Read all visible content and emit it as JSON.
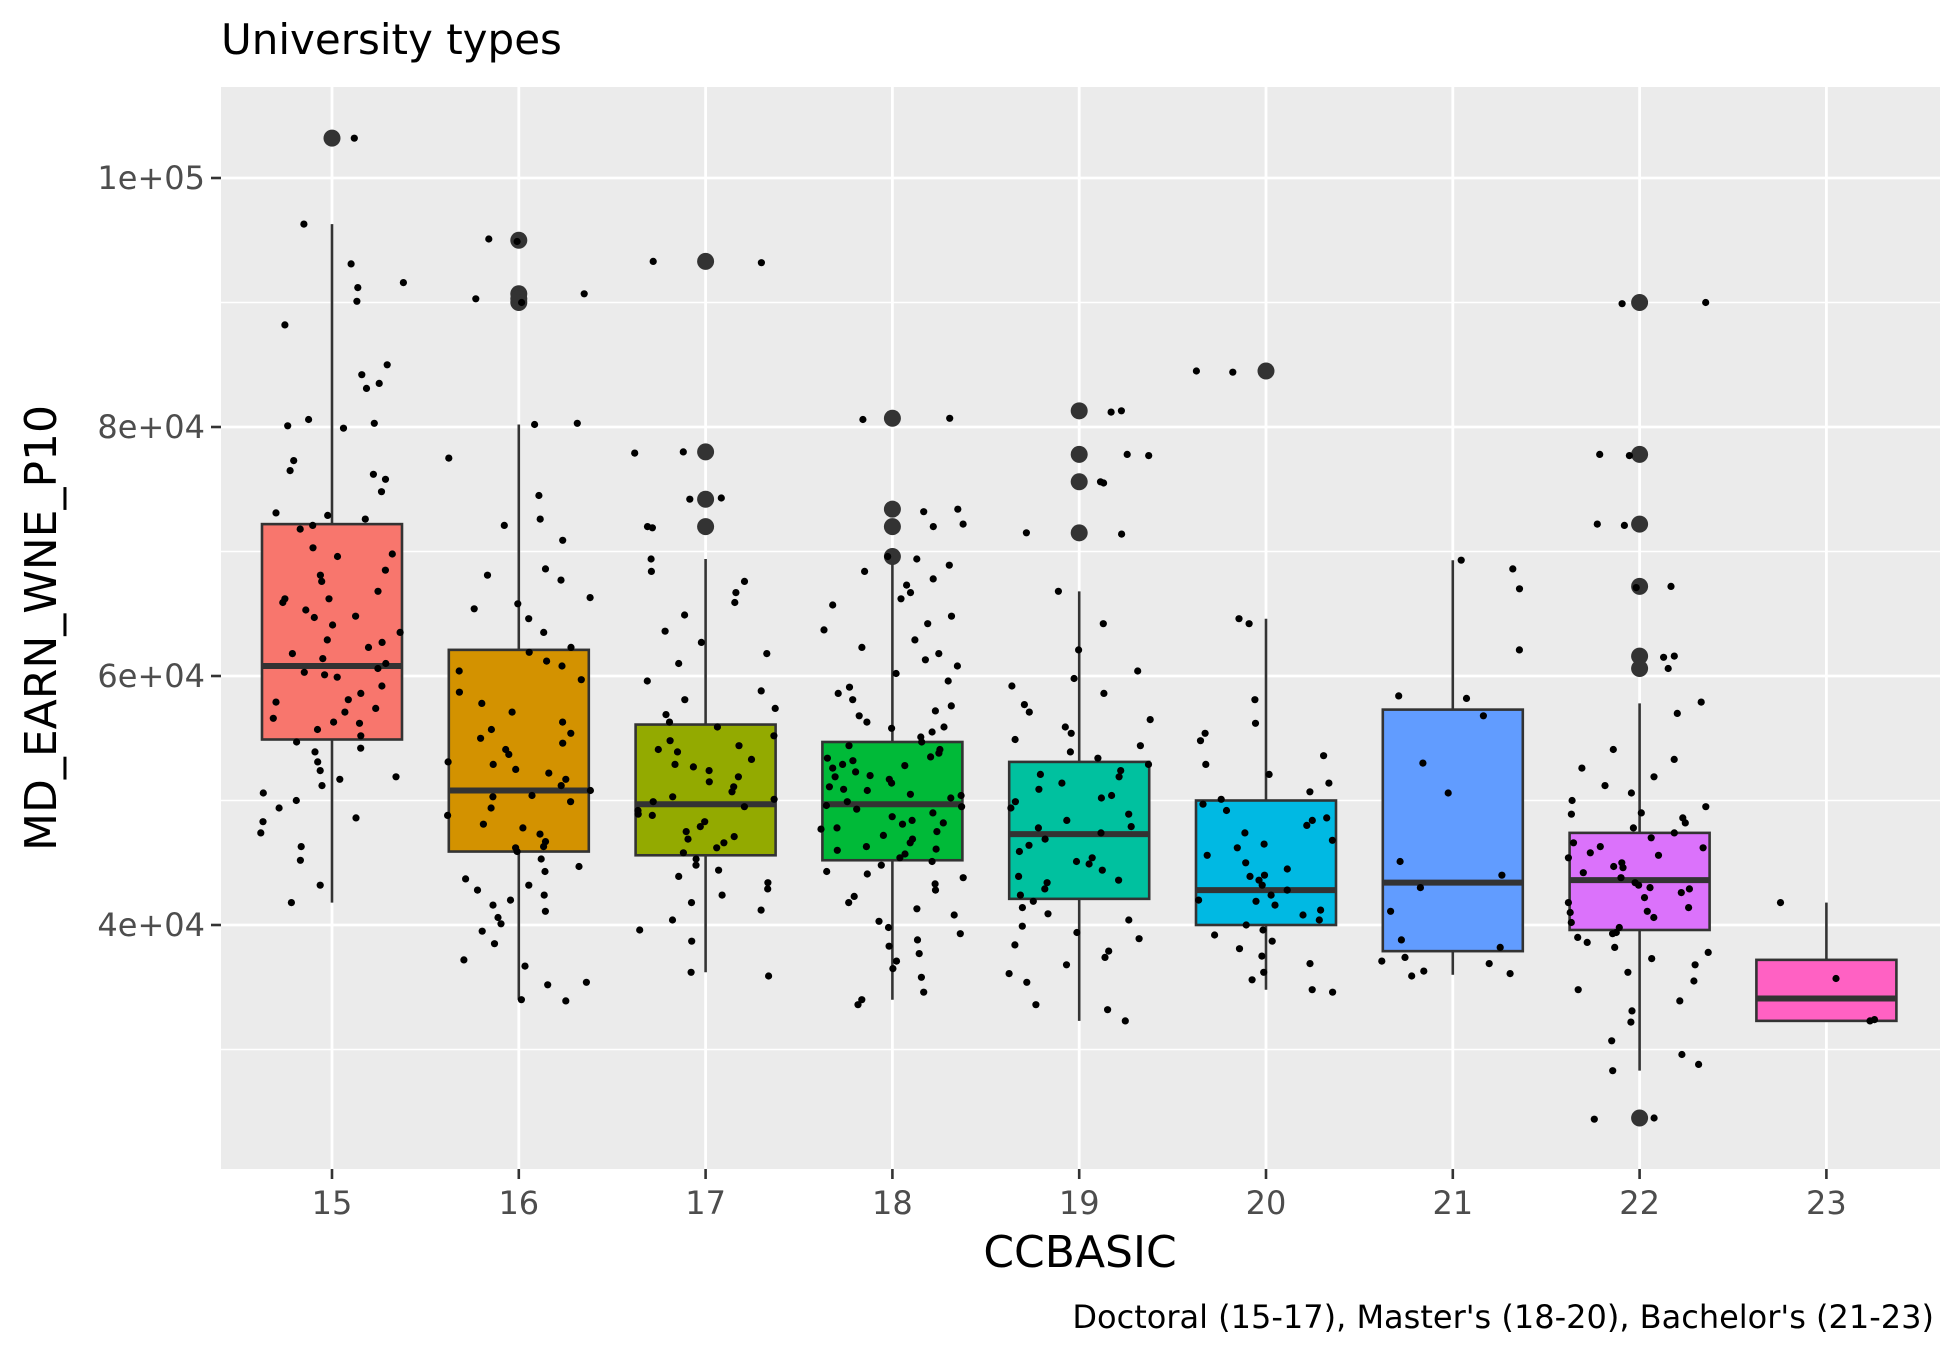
{
  "chart_data": {
    "type": "boxplot",
    "title": "University types",
    "xlabel": "CCBASIC",
    "ylabel": "MD_EARN_WNE_P10",
    "caption": "Doctoral (15-17), Master's (18-20), Bachelor's (21-23)",
    "ylim": [
      17000,
      106000
    ],
    "y_ticks": [
      40000,
      60000,
      80000,
      100000
    ],
    "y_tick_labels": [
      "4e+04",
      "6e+04",
      "8e+04",
      "1e+05"
    ],
    "grid": true,
    "legend": "none",
    "categories": [
      "15",
      "16",
      "17",
      "18",
      "19",
      "20",
      "21",
      "22",
      "23"
    ],
    "boxes": [
      {
        "category": "15",
        "color": "#F8766D",
        "whisker_low": 41800,
        "q1": 54900,
        "median": 60800,
        "q3": 72200,
        "whisker_high": 96300,
        "outliers": [
          103200
        ]
      },
      {
        "category": "16",
        "color": "#D39200",
        "whisker_low": 34000,
        "q1": 45900,
        "median": 50800,
        "q3": 62100,
        "whisker_high": 80200,
        "outliers": [
          95000,
          90700,
          90300,
          90000
        ]
      },
      {
        "category": "17",
        "color": "#93AA00",
        "whisker_low": 36200,
        "q1": 45600,
        "median": 49700,
        "q3": 56100,
        "whisker_high": 69400,
        "outliers": [
          93300,
          78000,
          74200,
          72000
        ]
      },
      {
        "category": "18",
        "color": "#00BA38",
        "whisker_low": 34000,
        "q1": 45200,
        "median": 49700,
        "q3": 54700,
        "whisker_high": 69000,
        "outliers": [
          80700,
          73400,
          72000,
          69600
        ]
      },
      {
        "category": "19",
        "color": "#00C19F",
        "whisker_low": 32300,
        "q1": 42100,
        "median": 47300,
        "q3": 53100,
        "whisker_high": 66800,
        "outliers": [
          81300,
          77800,
          75600,
          71500
        ]
      },
      {
        "category": "20",
        "color": "#00B9E3",
        "whisker_low": 34800,
        "q1": 40000,
        "median": 42800,
        "q3": 50000,
        "whisker_high": 64600,
        "outliers": [
          84500
        ]
      },
      {
        "category": "21",
        "color": "#619CFF",
        "whisker_low": 36000,
        "q1": 37900,
        "median": 43400,
        "q3": 57300,
        "whisker_high": 69300,
        "outliers": []
      },
      {
        "category": "22",
        "color": "#DB72FB",
        "whisker_low": 28300,
        "q1": 39600,
        "median": 43600,
        "q3": 47400,
        "whisker_high": 57800,
        "outliers": [
          90000,
          77800,
          72200,
          67200,
          61600,
          60600,
          24500
        ]
      },
      {
        "category": "23",
        "color": "#FF61C3",
        "whisker_low": 32300,
        "q1": 32300,
        "median": 34100,
        "q3": 37200,
        "whisker_high": 41800,
        "outliers": []
      }
    ],
    "jitter_points": [
      {
        "category": "15",
        "values": [
          103200,
          96300,
          93100,
          91600,
          91200,
          90100,
          88200,
          85000,
          84200,
          83500,
          83100,
          80600,
          80300,
          80100,
          79900,
          77300,
          76500,
          76200,
          75800,
          74800,
          73100,
          72900,
          72600,
          72100,
          71800,
          70300,
          69800,
          68500,
          68100,
          67600,
          66800,
          66200,
          65900,
          65300,
          64700,
          64100,
          63500,
          62900,
          62300,
          61800,
          61400,
          61000,
          60600,
          60300,
          59900,
          59200,
          58600,
          57900,
          57100,
          56600,
          56200,
          55700,
          55200,
          54700,
          53900,
          53100,
          52400,
          51900,
          51200,
          50600,
          50000,
          49400,
          48600,
          47400,
          46300,
          45200,
          43200,
          41800,
          57400,
          66200,
          69600,
          62700,
          58100,
          54200,
          48300,
          51700,
          60100,
          56300,
          64800
        ]
      },
      {
        "category": "16",
        "values": [
          95100,
          94900,
          90700,
          90300,
          90000,
          80300,
          80200,
          77500,
          74500,
          72600,
          72100,
          70900,
          68600,
          68100,
          67700,
          66300,
          65800,
          65400,
          64600,
          63500,
          62300,
          61900,
          61200,
          60400,
          59700,
          58700,
          57800,
          57100,
          56300,
          55700,
          55400,
          55000,
          54600,
          54100,
          53700,
          53100,
          52900,
          52200,
          51700,
          51200,
          50800,
          50400,
          49900,
          49400,
          48800,
          48100,
          47800,
          47300,
          46700,
          46300,
          45900,
          45300,
          44700,
          44300,
          43700,
          43200,
          42800,
          42400,
          42000,
          41600,
          41100,
          40600,
          40100,
          39500,
          38500,
          37200,
          36700,
          35400,
          35200,
          34000,
          33900,
          60800,
          50300,
          46200,
          52500
        ]
      },
      {
        "category": "17",
        "values": [
          93300,
          93200,
          78000,
          77900,
          74300,
          74200,
          72000,
          71900,
          69400,
          68400,
          67600,
          66700,
          65900,
          64900,
          63600,
          62700,
          61800,
          61000,
          59600,
          58800,
          58100,
          57400,
          56900,
          56300,
          55900,
          55200,
          54800,
          54400,
          53900,
          53300,
          52900,
          52400,
          51900,
          51500,
          51100,
          50700,
          50300,
          49900,
          49500,
          49200,
          48800,
          48300,
          47900,
          47500,
          47100,
          46600,
          46200,
          45800,
          45300,
          44800,
          44400,
          43900,
          43400,
          42900,
          42400,
          41800,
          41200,
          40400,
          39600,
          38700,
          36200,
          35900,
          50100,
          48900,
          52700,
          46900,
          54100
        ]
      },
      {
        "category": "18",
        "values": [
          80700,
          80600,
          73400,
          73200,
          72200,
          72000,
          69600,
          69400,
          68900,
          68400,
          67800,
          67300,
          66700,
          66200,
          65700,
          64800,
          64200,
          63700,
          62900,
          62300,
          61800,
          61300,
          60800,
          60200,
          59600,
          59100,
          58600,
          58100,
          57600,
          57200,
          56800,
          56300,
          55900,
          55500,
          55100,
          54700,
          54400,
          54100,
          53800,
          53500,
          53200,
          52900,
          52600,
          52300,
          52000,
          51700,
          51400,
          51100,
          50800,
          50500,
          50200,
          49900,
          49600,
          49300,
          49000,
          48700,
          48400,
          48100,
          47800,
          47500,
          47200,
          46900,
          46600,
          46300,
          46000,
          45700,
          45400,
          45100,
          44800,
          44300,
          43800,
          43300,
          42800,
          42300,
          41800,
          41300,
          40800,
          40300,
          39800,
          39300,
          38800,
          38300,
          37700,
          37100,
          36500,
          35800,
          34600,
          34000,
          33600,
          53400,
          50900,
          48200,
          55800,
          44100,
          47700,
          51900,
          49500,
          46100,
          52800,
          50400
        ]
      },
      {
        "category": "19",
        "values": [
          81300,
          81200,
          77800,
          77700,
          75600,
          75500,
          71500,
          71400,
          66800,
          64200,
          62100,
          60400,
          59800,
          59200,
          58600,
          57700,
          57100,
          56500,
          55900,
          55400,
          54900,
          54400,
          53900,
          53400,
          52900,
          52400,
          51900,
          51400,
          50900,
          50400,
          49900,
          49400,
          48900,
          48400,
          47900,
          47400,
          46900,
          46400,
          45900,
          45400,
          44900,
          44400,
          43900,
          43400,
          42900,
          42400,
          41900,
          41400,
          40900,
          40400,
          39900,
          39400,
          38900,
          38400,
          37900,
          37400,
          36800,
          36100,
          35400,
          33600,
          33200,
          32300,
          50200,
          47800,
          45100,
          52100,
          43600
        ]
      },
      {
        "category": "20",
        "values": [
          84500,
          84400,
          64600,
          64200,
          58100,
          56200,
          55400,
          54800,
          53600,
          52900,
          52100,
          51400,
          50700,
          50100,
          49700,
          49200,
          48600,
          48000,
          47400,
          46800,
          46200,
          45600,
          45000,
          44500,
          44000,
          43600,
          43200,
          42800,
          42400,
          42000,
          41600,
          41200,
          40800,
          40400,
          40000,
          39600,
          39200,
          38700,
          38100,
          37500,
          36900,
          36200,
          35600,
          34800,
          34600,
          46500,
          43900,
          41900,
          48400
        ]
      },
      {
        "category": "21",
        "values": [
          69300,
          68600,
          67000,
          62100,
          58400,
          58200,
          56800,
          53000,
          50600,
          45100,
          44000,
          43000,
          41100,
          38800,
          38200,
          37400,
          37100,
          36900,
          36300,
          36100,
          35900
        ]
      },
      {
        "category": "22",
        "values": [
          90000,
          89900,
          77800,
          77700,
          72200,
          72100,
          67200,
          67100,
          61600,
          61500,
          60600,
          57900,
          57000,
          54100,
          53300,
          52600,
          51900,
          51200,
          50600,
          50000,
          49500,
          49000,
          48600,
          48200,
          47800,
          47400,
          47000,
          46600,
          46200,
          45800,
          45400,
          45000,
          44600,
          44200,
          43800,
          43400,
          43000,
          42600,
          42200,
          41800,
          41400,
          41000,
          40600,
          40200,
          39800,
          39400,
          39000,
          38600,
          38200,
          37800,
          37300,
          36800,
          36200,
          35500,
          34800,
          33900,
          33100,
          32200,
          30700,
          29600,
          28800,
          28300,
          24500,
          24400,
          45600,
          43200,
          41100,
          48900,
          44700,
          39300,
          42900,
          46300
        ]
      },
      {
        "category": "23",
        "values": [
          41800,
          35700,
          32300,
          32400
        ]
      }
    ]
  }
}
